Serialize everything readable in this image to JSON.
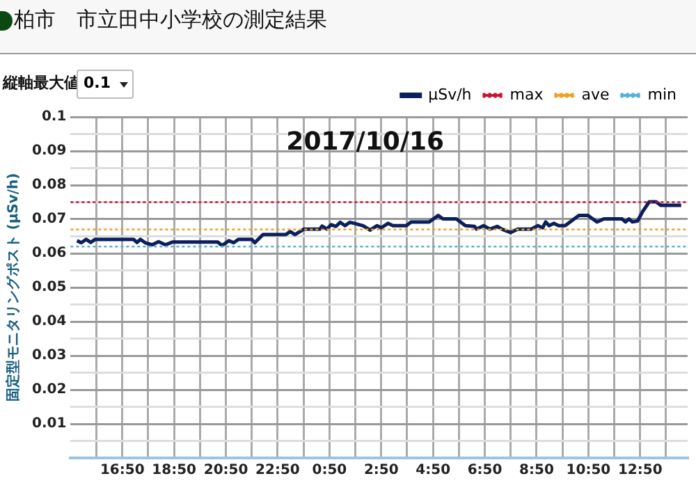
{
  "chart_data": {
    "type": "line",
    "title": "柏市　市立田中小学校の測定結果",
    "subtitle": "2017/10/16",
    "ylabel": "固定型モニタリングポスト (μSv/h)",
    "annotations": [
      "縦軸最大値",
      "0.1"
    ],
    "x": [
      "2017-10-15T15:05",
      "2017-10-15T15:15",
      "2017-10-15T15:26",
      "2017-10-15T15:37",
      "2017-10-15T15:47",
      "2017-10-15T17:16",
      "2017-10-15T17:24",
      "2017-10-15T17:32",
      "2017-10-15T17:43",
      "2017-10-15T17:59",
      "2017-10-15T18:14",
      "2017-10-15T18:30",
      "2017-10-15T18:46",
      "2017-10-15T20:31",
      "2017-10-15T20:41",
      "2017-10-15T20:57",
      "2017-10-15T21:08",
      "2017-10-15T21:19",
      "2017-10-15T21:50",
      "2017-10-15T21:57",
      "2017-10-15T22:16",
      "2017-10-15T23:09",
      "2017-10-15T23:19",
      "2017-10-15T23:30",
      "2017-10-15T23:51",
      "2017-10-16T00:28",
      "2017-10-16T00:33",
      "2017-10-16T00:44",
      "2017-10-16T00:54",
      "2017-10-16T01:05",
      "2017-10-16T01:15",
      "2017-10-16T01:26",
      "2017-10-16T01:37",
      "2017-10-16T01:47",
      "2017-10-16T02:08",
      "2017-10-16T02:24",
      "2017-10-16T02:40",
      "2017-10-16T02:50",
      "2017-10-16T03:06",
      "2017-10-16T03:17",
      "2017-10-16T03:48",
      "2017-10-16T03:59",
      "2017-10-16T04:41",
      "2017-10-16T05:02",
      "2017-10-16T05:13",
      "2017-10-16T05:44",
      "2017-10-16T06:05",
      "2017-10-16T06:26",
      "2017-10-16T06:31",
      "2017-10-16T06:47",
      "2017-10-16T07:02",
      "2017-10-16T07:19",
      "2017-10-16T07:29",
      "2017-10-16T07:50",
      "2017-10-16T08:06",
      "2017-10-16T08:37",
      "2017-10-16T08:53",
      "2017-10-16T09:04",
      "2017-10-16T09:11",
      "2017-10-16T09:19",
      "2017-10-16T09:30",
      "2017-10-16T09:41",
      "2017-10-16T09:56",
      "2017-10-16T10:28",
      "2017-10-16T10:49",
      "2017-10-16T11:10",
      "2017-10-16T11:26",
      "2017-10-16T12:08",
      "2017-10-16T12:16",
      "2017-10-16T12:24",
      "2017-10-16T12:32",
      "2017-10-16T12:44",
      "2017-10-16T12:55",
      "2017-10-16T13:11",
      "2017-10-16T13:27",
      "2017-10-16T13:37",
      "2017-10-16T14:25"
    ],
    "series": [
      {
        "name": "μSv/h",
        "color": "#0a1f5c",
        "values": [
          0.0637,
          0.0631,
          0.0641,
          0.0632,
          0.0641,
          0.0641,
          0.0632,
          0.0641,
          0.0631,
          0.0625,
          0.0634,
          0.0625,
          0.0633,
          0.0633,
          0.0623,
          0.0637,
          0.0631,
          0.0641,
          0.0641,
          0.0631,
          0.0655,
          0.0655,
          0.0664,
          0.0655,
          0.0671,
          0.0671,
          0.068,
          0.0671,
          0.0684,
          0.0679,
          0.0691,
          0.0681,
          0.0691,
          0.0688,
          0.0681,
          0.0668,
          0.0681,
          0.0675,
          0.0688,
          0.0681,
          0.0681,
          0.0692,
          0.0692,
          0.0711,
          0.0701,
          0.0701,
          0.0681,
          0.0679,
          0.0671,
          0.0681,
          0.0671,
          0.0679,
          0.0671,
          0.0661,
          0.0671,
          0.0671,
          0.0681,
          0.0675,
          0.0692,
          0.0681,
          0.0688,
          0.0681,
          0.0681,
          0.0711,
          0.0711,
          0.0692,
          0.0701,
          0.0701,
          0.0692,
          0.0701,
          0.0692,
          0.0695,
          0.0721,
          0.0751,
          0.0751,
          0.0741,
          0.0741
        ]
      }
    ],
    "ref_lines": [
      {
        "axis": "y",
        "value": 0.075,
        "label": "max",
        "color": "#cc1133",
        "line_style": "dotted"
      },
      {
        "axis": "y",
        "value": 0.067,
        "label": "ave",
        "color": "#f0a020",
        "line_style": "dotted"
      },
      {
        "axis": "y",
        "value": 0.062,
        "label": "min",
        "color": "#55b0d8",
        "line_style": "dotted"
      }
    ],
    "xlim": [
      "2017-10-15T14:50",
      "2017-10-16T14:40"
    ],
    "xticks": [
      {
        "value": "2017-10-15T15:50",
        "label": null
      },
      {
        "value": "2017-10-15T16:50",
        "label": "16:50"
      },
      {
        "value": "2017-10-15T17:50",
        "label": null
      },
      {
        "value": "2017-10-15T18:50",
        "label": "18:50"
      },
      {
        "value": "2017-10-15T19:50",
        "label": null
      },
      {
        "value": "2017-10-15T20:50",
        "label": "20:50"
      },
      {
        "value": "2017-10-15T21:50",
        "label": null
      },
      {
        "value": "2017-10-15T22:50",
        "label": "22:50"
      },
      {
        "value": "2017-10-15T23:50",
        "label": null
      },
      {
        "value": "2017-10-16T00:50",
        "label": "0:50"
      },
      {
        "value": "2017-10-16T01:50",
        "label": null
      },
      {
        "value": "2017-10-16T02:50",
        "label": "2:50"
      },
      {
        "value": "2017-10-16T03:50",
        "label": null
      },
      {
        "value": "2017-10-16T04:50",
        "label": "4:50"
      },
      {
        "value": "2017-10-16T05:50",
        "label": null
      },
      {
        "value": "2017-10-16T06:50",
        "label": "6:50"
      },
      {
        "value": "2017-10-16T07:50",
        "label": null
      },
      {
        "value": "2017-10-16T08:50",
        "label": "8:50"
      },
      {
        "value": "2017-10-16T09:50",
        "label": null
      },
      {
        "value": "2017-10-16T10:50",
        "label": "10:50"
      },
      {
        "value": "2017-10-16T11:50",
        "label": null
      },
      {
        "value": "2017-10-16T12:50",
        "label": "12:50"
      },
      {
        "value": "2017-10-16T13:50",
        "label": null
      }
    ],
    "ylim": [
      0,
      0.1
    ],
    "yticks": [
      {
        "value": 0,
        "label": null
      },
      {
        "value": 0.005,
        "label": null
      },
      0.01,
      {
        "value": 0.015,
        "label": null
      },
      0.02,
      {
        "value": 0.025,
        "label": null
      },
      0.03,
      {
        "value": 0.035,
        "label": null
      },
      0.04,
      {
        "value": 0.045,
        "label": null
      },
      0.05,
      {
        "value": 0.055,
        "label": null
      },
      0.06,
      {
        "value": 0.065,
        "label": null
      },
      0.07,
      {
        "value": 0.075,
        "label": null
      },
      0.08,
      {
        "value": 0.085,
        "label": null
      },
      0.09,
      {
        "value": 0.095,
        "label": null
      },
      0.1
    ],
    "grid": true,
    "legend": "top right",
    "marker": "none",
    "line_style": "solid"
  }
}
